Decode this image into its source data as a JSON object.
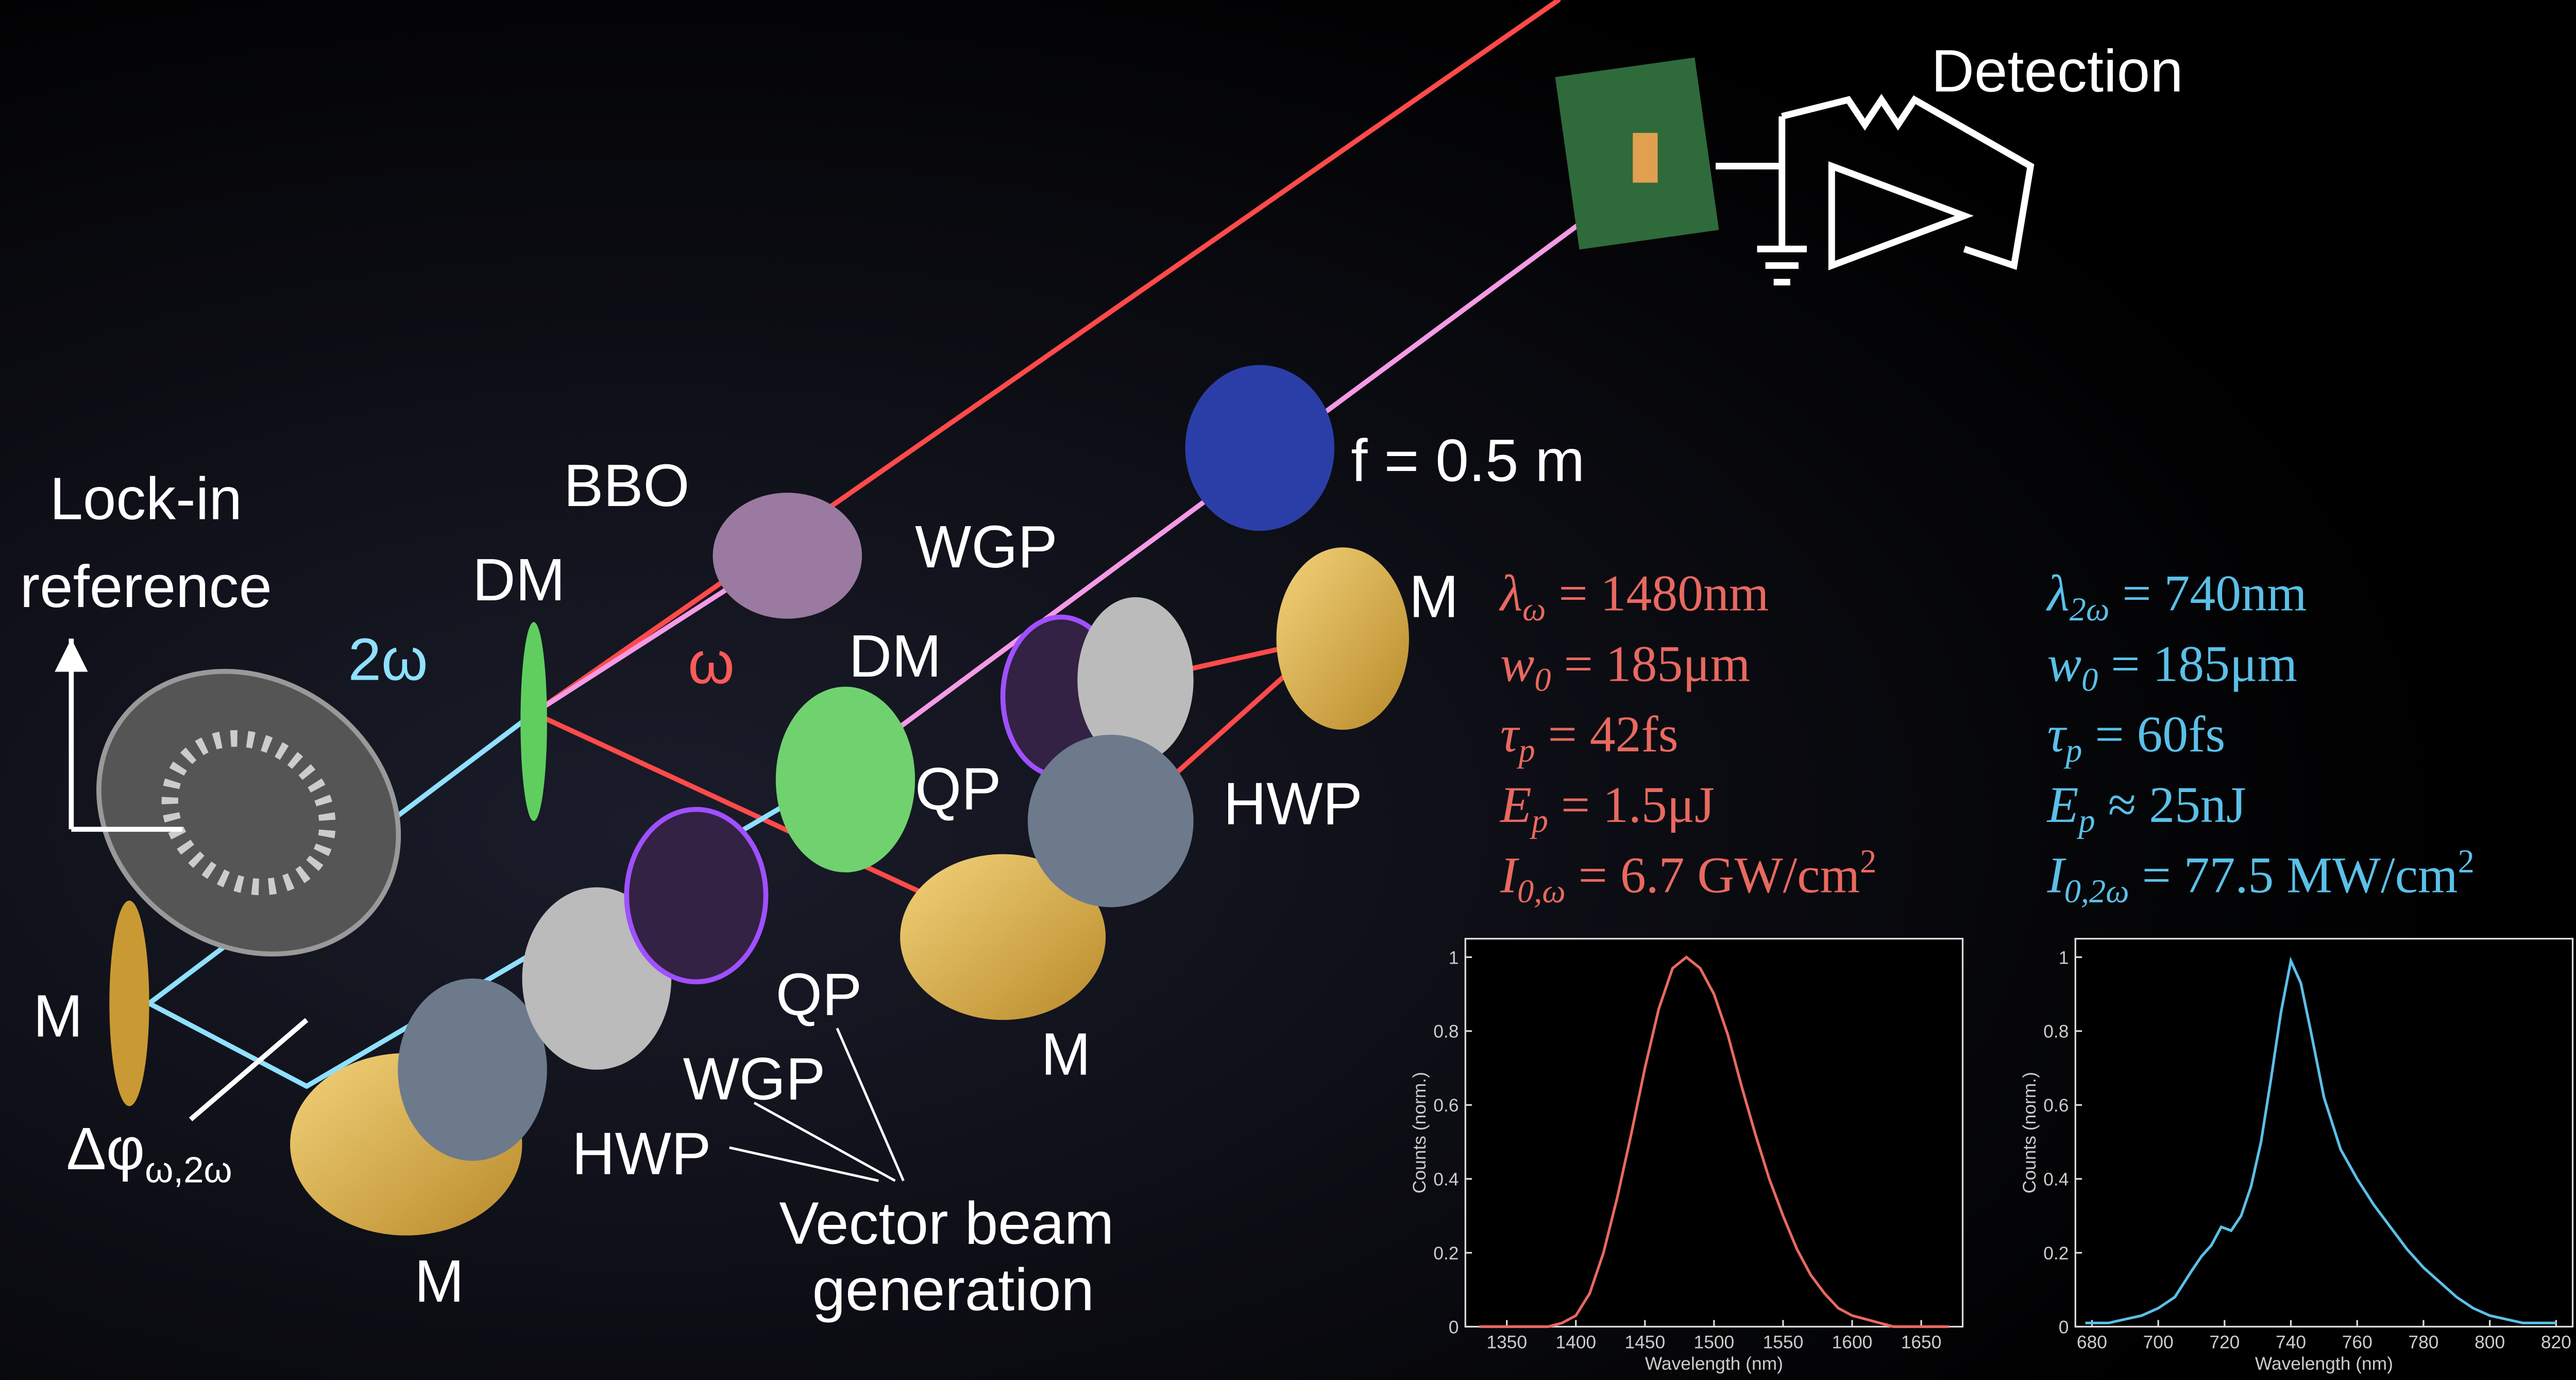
{
  "labels": {
    "detection": "Detection",
    "focal": "f = 0.5 m",
    "bbo": "BBO",
    "dm1": "DM",
    "dm2": "DM",
    "wgp1": "WGP",
    "qp1": "QP",
    "hwp1": "HWP",
    "m_right": "M",
    "m_mid": "M",
    "m_left": "M",
    "m_bottom": "M",
    "lockin": "Lock-in",
    "reference": "reference",
    "two_omega": "2ω",
    "omega": "ω",
    "phase": "Δφ",
    "phase_sub": "ω,2ω",
    "qp2": "QP",
    "wgp2": "WGP",
    "hwp2": "HWP",
    "vector1": "Vector beam",
    "vector2": "generation"
  },
  "parameters": {
    "omega": [
      {
        "symbol": "λ",
        "sub": "ω",
        "value": " = 1480nm"
      },
      {
        "symbol": "w",
        "sub": "0",
        "value": " = 185μm"
      },
      {
        "symbol": "τ",
        "sub": "p",
        "value": " = 42fs"
      },
      {
        "symbol": "E",
        "sub": "p",
        "value": " = 1.5μJ"
      },
      {
        "symbol": "I",
        "sub": "0,ω",
        "value": " = 6.7 GW/cm",
        "sup": "2"
      }
    ],
    "two_omega": [
      {
        "symbol": "λ",
        "sub": "2ω",
        "value": " = 740nm"
      },
      {
        "symbol": "w",
        "sub": "0",
        "value": " = 185μm"
      },
      {
        "symbol": "τ",
        "sub": "p",
        "value": " = 60fs"
      },
      {
        "symbol": "E",
        "sub": "p",
        "value": " ≈ 25nJ"
      },
      {
        "symbol": "I",
        "sub": "0,2ω",
        "value": " = 77.5 MW/cm",
        "sup": "2"
      }
    ]
  },
  "chart_data": [
    {
      "type": "line",
      "xlabel": "Wavelength (nm)",
      "ylabel": "Counts (norm.)",
      "color": "#e8695f",
      "x": [
        1330,
        1340,
        1350,
        1360,
        1370,
        1380,
        1390,
        1400,
        1410,
        1420,
        1430,
        1440,
        1450,
        1460,
        1470,
        1480,
        1490,
        1500,
        1510,
        1520,
        1530,
        1540,
        1550,
        1560,
        1570,
        1580,
        1590,
        1600,
        1610,
        1620,
        1630,
        1640,
        1650,
        1660,
        1670
      ],
      "values": [
        0,
        0,
        0,
        0,
        0,
        0,
        0.01,
        0.03,
        0.09,
        0.2,
        0.35,
        0.52,
        0.7,
        0.86,
        0.97,
        1.0,
        0.97,
        0.9,
        0.79,
        0.65,
        0.52,
        0.4,
        0.3,
        0.21,
        0.14,
        0.09,
        0.05,
        0.03,
        0.02,
        0.01,
        0,
        0,
        0,
        0,
        0
      ],
      "xlim": [
        1320,
        1680
      ],
      "ylim": [
        0,
        1.05
      ],
      "xticks": [
        1350,
        1400,
        1450,
        1500,
        1550,
        1600,
        1650
      ],
      "yticks": [
        0,
        0.2,
        0.4,
        0.6,
        0.8,
        1
      ]
    },
    {
      "type": "line",
      "xlabel": "Wavelength (nm)",
      "ylabel": "Counts (norm.)",
      "color": "#5bc0e8",
      "x": [
        678,
        685,
        690,
        695,
        700,
        705,
        710,
        713,
        716,
        719,
        722,
        725,
        728,
        731,
        734,
        737,
        740,
        743,
        746,
        750,
        755,
        760,
        765,
        770,
        775,
        780,
        785,
        790,
        795,
        800,
        810,
        820
      ],
      "values": [
        0.01,
        0.01,
        0.02,
        0.03,
        0.05,
        0.08,
        0.15,
        0.19,
        0.22,
        0.27,
        0.26,
        0.3,
        0.38,
        0.5,
        0.67,
        0.85,
        0.99,
        0.93,
        0.8,
        0.62,
        0.48,
        0.4,
        0.33,
        0.27,
        0.21,
        0.16,
        0.12,
        0.08,
        0.05,
        0.03,
        0.01,
        0.01
      ],
      "xlim": [
        675,
        825
      ],
      "ylim": [
        0,
        1.05
      ],
      "xticks": [
        680,
        700,
        720,
        740,
        760,
        780,
        800,
        820
      ],
      "yticks": [
        0,
        0.2,
        0.4,
        0.6,
        0.8,
        1
      ]
    }
  ]
}
